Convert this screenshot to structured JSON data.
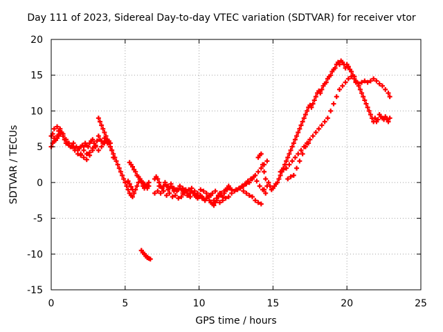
{
  "chart_data": {
    "type": "scatter",
    "title": "Day 111 of 2023, Sidereal Day-to-day VTEC variation (SDTVAR) for receiver vtor",
    "xlabel": "GPS time / hours",
    "ylabel": "SDTVAR / TECUs",
    "xlim": [
      0,
      25
    ],
    "ylim": [
      -15,
      20
    ],
    "xticks": [
      0,
      5,
      10,
      15,
      20,
      25
    ],
    "yticks": [
      -15,
      -10,
      -5,
      0,
      5,
      10,
      15,
      20
    ],
    "xtick_labels": [
      "0",
      "5",
      "10",
      "15",
      "20",
      "25"
    ],
    "ytick_labels": [
      "-15",
      "-10",
      "-5",
      "0",
      "5",
      "10",
      "15",
      "20"
    ],
    "grid": true,
    "marker": "+",
    "color": "#ff0000",
    "series": [
      {
        "name": "SDTVAR",
        "x": [
          0.0,
          0.1,
          0.2,
          0.3,
          0.4,
          0.5,
          0.6,
          0.7,
          0.8,
          0.9,
          1.0,
          1.1,
          1.2,
          1.3,
          1.4,
          1.5,
          1.6,
          1.7,
          1.8,
          1.9,
          2.0,
          2.1,
          2.2,
          2.3,
          2.4,
          2.5,
          2.6,
          2.7,
          2.8,
          2.9,
          3.0,
          3.1,
          3.2,
          3.3,
          3.4,
          3.5,
          3.6,
          3.7,
          3.8,
          3.9,
          4.0,
          4.1,
          4.2,
          0.0,
          0.1,
          0.2,
          0.3,
          0.4,
          0.5,
          0.6,
          0.7,
          0.8,
          1.0,
          1.2,
          1.4,
          1.6,
          1.8,
          2.0,
          2.2,
          2.4,
          2.6,
          2.8,
          3.0,
          3.2,
          3.4,
          3.6,
          3.8,
          4.0,
          0.2,
          0.4,
          0.6,
          0.8,
          1.0,
          1.5,
          2.0,
          2.2,
          2.4,
          2.6,
          2.8,
          3.0,
          3.2,
          3.3,
          3.4,
          3.5,
          3.6,
          3.7,
          3.8,
          3.9,
          4.0,
          4.1,
          4.2,
          4.3,
          4.4,
          4.5,
          4.6,
          4.7,
          4.8,
          4.9,
          5.0,
          5.1,
          5.2,
          5.3,
          5.4,
          5.5,
          5.6,
          5.7,
          5.8,
          5.9,
          6.0,
          6.1,
          6.2,
          6.3,
          6.4,
          6.5,
          6.6,
          5.3,
          5.4,
          5.5,
          5.6,
          5.7,
          5.8,
          5.9,
          6.0,
          6.1,
          6.2,
          6.3,
          6.4,
          6.5,
          6.6,
          5.2,
          5.3,
          5.4,
          5.5,
          6.1,
          6.2,
          6.3,
          6.4,
          6.5,
          6.6,
          6.7,
          7.0,
          7.1,
          7.2,
          7.3,
          7.4,
          7.5,
          7.6,
          7.7,
          7.8,
          7.9,
          8.0,
          8.1,
          8.2,
          8.3,
          8.4,
          8.5,
          8.6,
          8.7,
          8.8,
          8.9,
          9.0,
          9.1,
          9.2,
          9.3,
          9.4,
          9.5,
          9.6,
          9.7,
          9.8,
          9.9,
          10.0,
          10.1,
          10.2,
          10.3,
          10.4,
          10.5,
          10.6,
          10.7,
          10.8,
          10.9,
          11.0,
          11.1,
          11.2,
          11.3,
          11.4,
          11.5,
          11.6,
          11.7,
          11.8,
          11.9,
          12.0,
          12.1,
          12.2,
          7.0,
          7.2,
          7.4,
          7.6,
          7.8,
          8.0,
          8.2,
          8.4,
          8.6,
          8.8,
          9.0,
          9.2,
          9.4,
          9.6,
          9.8,
          10.0,
          10.2,
          10.4,
          10.6,
          10.8,
          11.0,
          11.2,
          11.4,
          11.6,
          11.8,
          12.0,
          7.3,
          7.5,
          7.7,
          7.9,
          8.1,
          8.3,
          8.5,
          8.7,
          8.9,
          9.1,
          9.3,
          9.5,
          9.7,
          9.9,
          10.1,
          10.3,
          10.5,
          10.7,
          10.9,
          11.1,
          11.3,
          11.5,
          11.7,
          11.9,
          12.2,
          12.4,
          12.6,
          12.8,
          13.0,
          13.2,
          13.4,
          13.6,
          13.8,
          14.0,
          14.2,
          14.4,
          14.6,
          12.5,
          12.7,
          12.9,
          13.1,
          13.3,
          13.5,
          13.7,
          13.9,
          14.1,
          14.3,
          13.0,
          13.2,
          13.4,
          13.6,
          13.8,
          14.0,
          14.2,
          14.0,
          14.1,
          14.2,
          14.3,
          14.4,
          14.5,
          14.4,
          14.5,
          14.6,
          14.7,
          14.8,
          14.9,
          15.0,
          15.1,
          15.2,
          15.3,
          15.4,
          15.5,
          15.6,
          15.7,
          15.8,
          15.9,
          16.0,
          16.1,
          16.2,
          16.3,
          16.4,
          16.5,
          16.6,
          16.7,
          16.8,
          16.9,
          17.0,
          17.1,
          17.2,
          17.3,
          17.4,
          17.5,
          17.6,
          17.7,
          17.8,
          17.9,
          18.0,
          18.1,
          18.2,
          18.3,
          18.4,
          18.5,
          18.6,
          18.7,
          18.8,
          18.9,
          19.0,
          19.1,
          19.2,
          19.3,
          19.4,
          19.5,
          19.6,
          19.7,
          19.8,
          19.9,
          20.0,
          20.1,
          20.2,
          20.3,
          20.4,
          20.5,
          15.5,
          15.7,
          15.9,
          16.1,
          16.3,
          16.5,
          16.7,
          16.9,
          17.1,
          17.3,
          17.5,
          17.7,
          17.9,
          18.1,
          18.3,
          18.5,
          18.7,
          18.9,
          19.1,
          19.3,
          19.5,
          19.7,
          19.9,
          20.1,
          20.3,
          16.0,
          16.2,
          16.4,
          16.6,
          16.8,
          17.0,
          17.2,
          17.4,
          20.5,
          20.6,
          20.7,
          20.8,
          20.9,
          21.0,
          21.1,
          21.2,
          21.3,
          21.4,
          21.5,
          21.6,
          21.7,
          21.8,
          21.9,
          22.0,
          22.1,
          22.2,
          22.3,
          22.4,
          22.5,
          22.6,
          22.7,
          22.8,
          22.9,
          20.6,
          20.8,
          21.0,
          21.2,
          21.4,
          21.6,
          21.8,
          22.0,
          22.2,
          22.4,
          22.6,
          22.8,
          22.9,
          6.1,
          6.2,
          6.3,
          6.4,
          6.5,
          6.6,
          6.7
        ],
        "y": [
          6.5,
          6.8,
          6.2,
          5.9,
          6.5,
          7.2,
          7.5,
          7.0,
          6.5,
          6.0,
          5.5,
          5.5,
          5.2,
          5.0,
          5.2,
          5.0,
          4.8,
          5.0,
          4.5,
          4.8,
          5.0,
          5.2,
          5.0,
          5.5,
          5.2,
          5.0,
          5.5,
          5.8,
          6.0,
          5.5,
          5.2,
          5.8,
          6.5,
          6.0,
          5.8,
          5.5,
          6.2,
          5.8,
          5.5,
          5.8,
          5.0,
          4.5,
          3.5,
          5.0,
          5.5,
          5.8,
          6.0,
          6.2,
          6.5,
          6.8,
          7.0,
          6.5,
          6.0,
          5.5,
          5.0,
          4.5,
          4.0,
          3.8,
          4.5,
          4.0,
          4.2,
          4.8,
          5.0,
          4.5,
          5.0,
          5.5,
          5.8,
          5.5,
          7.5,
          7.8,
          7.2,
          6.8,
          6.0,
          5.5,
          4.0,
          3.5,
          3.2,
          3.8,
          4.5,
          5.0,
          9.0,
          8.5,
          8.0,
          7.5,
          7.0,
          6.5,
          6.0,
          5.5,
          5.0,
          4.5,
          4.0,
          3.5,
          3.0,
          2.5,
          2.0,
          1.5,
          1.0,
          0.5,
          0.0,
          -0.5,
          -1.0,
          -1.5,
          -1.8,
          -2.0,
          -1.5,
          -1.0,
          -0.5,
          0.0,
          0.5,
          0.0,
          -0.5,
          -0.8,
          -0.5,
          -0.3,
          0.0,
          2.8,
          2.5,
          2.2,
          1.8,
          1.5,
          1.0,
          0.8,
          0.5,
          0.2,
          0.0,
          -0.2,
          -0.5,
          -0.8,
          -0.5,
          0.2,
          -0.2,
          -0.6,
          -1.0,
          -9.5,
          -9.8,
          -10.0,
          -10.2,
          -10.5,
          -10.6,
          -10.7,
          0.5,
          0.8,
          0.5,
          0.0,
          -0.5,
          -0.8,
          -0.5,
          0.0,
          -0.5,
          -1.0,
          -0.8,
          -0.5,
          -0.8,
          -1.2,
          -1.0,
          -1.2,
          -1.0,
          -0.8,
          -1.0,
          -1.5,
          -1.2,
          -1.0,
          -1.5,
          -1.8,
          -1.5,
          -1.2,
          -1.5,
          -1.8,
          -2.0,
          -2.2,
          -2.0,
          -1.8,
          -2.0,
          -2.2,
          -2.5,
          -2.2,
          -2.0,
          -2.5,
          -2.8,
          -3.0,
          -3.2,
          -2.8,
          -2.5,
          -2.0,
          -1.5,
          -1.8,
          -2.0,
          -1.5,
          -1.0,
          -0.8,
          -0.5,
          -0.8,
          -1.0,
          -1.5,
          -1.2,
          -1.5,
          -1.2,
          -1.8,
          -1.5,
          -2.0,
          -1.8,
          -2.2,
          -2.0,
          -1.5,
          -1.8,
          -2.0,
          -1.5,
          -1.8,
          -2.0,
          -2.2,
          -2.5,
          -2.0,
          -1.8,
          -2.5,
          -2.2,
          -2.8,
          -2.5,
          -2.2,
          -2.0,
          -0.5,
          -0.8,
          -0.3,
          -0.5,
          -0.2,
          -0.8,
          -1.0,
          -0.5,
          -0.8,
          -1.2,
          -1.0,
          -0.8,
          -1.2,
          -1.5,
          -1.0,
          -1.2,
          -1.5,
          -1.8,
          -1.5,
          -1.2,
          -1.8,
          -1.5,
          -1.2,
          -1.0,
          -1.5,
          -1.2,
          -1.0,
          -0.8,
          -0.5,
          -0.2,
          0.0,
          0.5,
          1.0,
          1.5,
          2.0,
          2.5,
          3.0,
          -1.0,
          -0.8,
          -0.5,
          -0.2,
          0.2,
          0.5,
          0.8,
          0.2,
          -0.5,
          -1.0,
          -1.2,
          -1.5,
          -1.8,
          -2.0,
          -2.5,
          -2.8,
          -3.0,
          3.5,
          3.8,
          4.0,
          2.5,
          1.5,
          0.5,
          -1.0,
          -1.5,
          -0.5,
          0.0,
          -0.5,
          -1.0,
          -0.8,
          -0.5,
          -0.2,
          0.0,
          0.5,
          1.0,
          1.5,
          2.0,
          2.5,
          3.0,
          3.5,
          4.0,
          4.5,
          5.0,
          5.5,
          6.0,
          6.5,
          7.0,
          7.5,
          8.0,
          8.5,
          9.0,
          9.5,
          10.0,
          10.5,
          10.8,
          10.5,
          11.0,
          11.5,
          12.0,
          12.5,
          12.8,
          12.5,
          13.0,
          13.5,
          13.8,
          14.0,
          14.5,
          14.8,
          15.0,
          15.5,
          15.8,
          16.0,
          16.5,
          16.8,
          16.5,
          17.0,
          16.8,
          16.5,
          16.0,
          16.5,
          16.2,
          15.8,
          15.5,
          15.0,
          14.8,
          1.5,
          1.8,
          2.0,
          2.5,
          3.0,
          3.5,
          4.0,
          4.5,
          5.0,
          5.5,
          6.0,
          6.5,
          7.0,
          7.5,
          8.0,
          8.5,
          9.0,
          10.0,
          11.0,
          12.0,
          13.0,
          13.5,
          14.0,
          14.5,
          14.8,
          0.5,
          0.8,
          1.0,
          2.0,
          3.0,
          4.0,
          5.0,
          5.5,
          14.5,
          14.2,
          14.0,
          13.5,
          13.0,
          12.5,
          12.0,
          11.5,
          11.0,
          10.5,
          10.0,
          9.5,
          9.0,
          8.5,
          9.0,
          8.5,
          8.8,
          9.5,
          9.2,
          9.0,
          8.8,
          9.2,
          8.8,
          8.5,
          9.0,
          14.0,
          13.8,
          14.0,
          14.2,
          14.0,
          14.2,
          14.5,
          14.2,
          13.8,
          13.5,
          13.0,
          12.5,
          12.0,
          -9.5,
          -9.8,
          -10.0,
          -10.3,
          -10.5,
          -10.6,
          -10.7
        ]
      }
    ]
  }
}
